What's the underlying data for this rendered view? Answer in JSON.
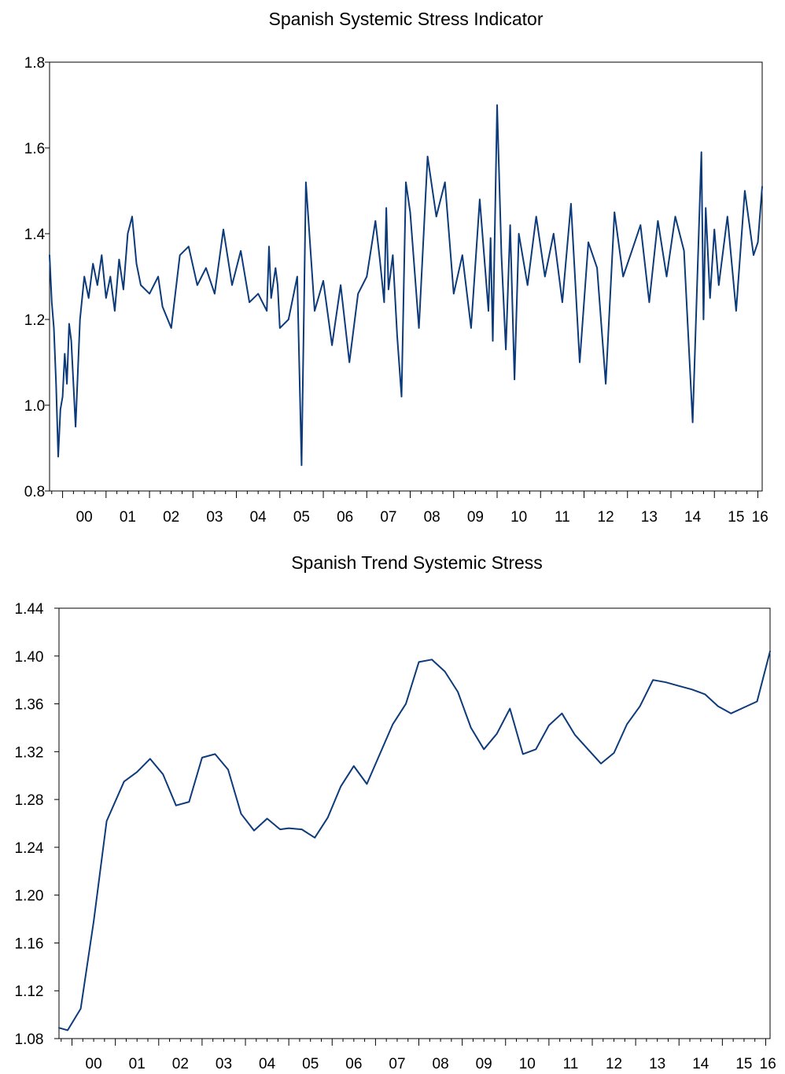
{
  "chart_data": [
    {
      "type": "line",
      "title": "Spanish Systemic Stress Indicator",
      "xlabel": "",
      "ylabel": "",
      "x_tick_labels": [
        "00",
        "01",
        "02",
        "03",
        "04",
        "05",
        "06",
        "07",
        "08",
        "09",
        "10",
        "11",
        "12",
        "13",
        "14",
        "15",
        "16"
      ],
      "y_tick_labels": [
        "0.8",
        "1.0",
        "1.2",
        "1.4",
        "1.6",
        "1.8"
      ],
      "ylim": [
        0.8,
        1.8
      ],
      "xlim": [
        1999.7,
        2016.1
      ],
      "grid": false,
      "legend": "none",
      "line_color": "#0d3b7a",
      "series": [
        {
          "x": [
            1999.7,
            1999.75,
            1999.8,
            1999.85,
            1999.9,
            1999.95,
            2000.0,
            2000.05,
            2000.1,
            2000.15,
            2000.2,
            2000.3,
            2000.4,
            2000.5,
            2000.6,
            2000.7,
            2000.8,
            2000.9,
            2001.0,
            2001.1,
            2001.2,
            2001.3,
            2001.4,
            2001.5,
            2001.6,
            2001.7,
            2001.8,
            2002.0,
            2002.2,
            2002.3,
            2002.5,
            2002.7,
            2002.9,
            2003.1,
            2003.3,
            2003.5,
            2003.7,
            2003.9,
            2004.1,
            2004.3,
            2004.5,
            2004.7,
            2004.75,
            2004.8,
            2004.9,
            2004.95,
            2005.0,
            2005.2,
            2005.4,
            2005.5,
            2005.6,
            2005.8,
            2006.0,
            2006.2,
            2006.4,
            2006.6,
            2006.8,
            2007.0,
            2007.2,
            2007.3,
            2007.4,
            2007.45,
            2007.5,
            2007.6,
            2007.7,
            2007.8,
            2007.9,
            2008.0,
            2008.2,
            2008.4,
            2008.6,
            2008.8,
            2009.0,
            2009.2,
            2009.4,
            2009.6,
            2009.8,
            2009.85,
            2009.9,
            2010.0,
            2010.1,
            2010.2,
            2010.3,
            2010.4,
            2010.5,
            2010.7,
            2010.9,
            2011.1,
            2011.3,
            2011.5,
            2011.7,
            2011.9,
            2012.1,
            2012.3,
            2012.5,
            2012.7,
            2012.9,
            2013.1,
            2013.3,
            2013.5,
            2013.7,
            2013.9,
            2014.1,
            2014.3,
            2014.5,
            2014.7,
            2014.75,
            2014.8,
            2014.9,
            2015.0,
            2015.1,
            2015.3,
            2015.5,
            2015.7,
            2015.9,
            2016.0,
            2016.1
          ],
          "values": [
            1.35,
            1.24,
            1.18,
            1.05,
            0.88,
            0.99,
            1.02,
            1.12,
            1.05,
            1.19,
            1.15,
            0.95,
            1.2,
            1.3,
            1.25,
            1.33,
            1.28,
            1.35,
            1.25,
            1.3,
            1.22,
            1.34,
            1.27,
            1.4,
            1.44,
            1.33,
            1.28,
            1.26,
            1.3,
            1.23,
            1.18,
            1.35,
            1.37,
            1.28,
            1.32,
            1.26,
            1.41,
            1.28,
            1.36,
            1.24,
            1.26,
            1.22,
            1.37,
            1.25,
            1.32,
            1.28,
            1.18,
            1.2,
            1.3,
            0.86,
            1.52,
            1.22,
            1.29,
            1.14,
            1.28,
            1.1,
            1.26,
            1.3,
            1.43,
            1.34,
            1.24,
            1.46,
            1.27,
            1.35,
            1.16,
            1.02,
            1.52,
            1.45,
            1.18,
            1.58,
            1.44,
            1.52,
            1.26,
            1.35,
            1.18,
            1.48,
            1.22,
            1.39,
            1.15,
            1.7,
            1.35,
            1.13,
            1.42,
            1.06,
            1.4,
            1.28,
            1.44,
            1.3,
            1.4,
            1.24,
            1.47,
            1.1,
            1.38,
            1.32,
            1.05,
            1.45,
            1.3,
            1.36,
            1.42,
            1.24,
            1.43,
            1.3,
            1.44,
            1.36,
            0.96,
            1.59,
            1.2,
            1.46,
            1.25,
            1.41,
            1.28,
            1.44,
            1.22,
            1.5,
            1.35,
            1.38,
            1.51
          ],
          "note": ""
        }
      ]
    },
    {
      "type": "line",
      "title": "Spanish Trend Systemic Stress",
      "xlabel": "",
      "ylabel": "",
      "x_tick_labels": [
        "00",
        "01",
        "02",
        "03",
        "04",
        "05",
        "06",
        "07",
        "08",
        "09",
        "10",
        "11",
        "12",
        "13",
        "14",
        "15",
        "16"
      ],
      "y_tick_labels": [
        "1.08",
        "1.12",
        "1.16",
        "1.20",
        "1.24",
        "1.28",
        "1.32",
        "1.36",
        "1.40",
        "1.44"
      ],
      "ylim": [
        1.08,
        1.44
      ],
      "xlim": [
        1999.7,
        2016.1
      ],
      "grid": false,
      "legend": "none",
      "line_color": "#0d3b7a",
      "series": [
        {
          "x": [
            1999.7,
            1999.9,
            2000.2,
            2000.5,
            2000.8,
            2001.2,
            2001.5,
            2001.8,
            2002.1,
            2002.4,
            2002.7,
            2003.0,
            2003.3,
            2003.6,
            2003.9,
            2004.2,
            2004.5,
            2004.8,
            2005.0,
            2005.3,
            2005.6,
            2005.9,
            2006.2,
            2006.5,
            2006.8,
            2007.1,
            2007.4,
            2007.7,
            2008.0,
            2008.3,
            2008.6,
            2008.9,
            2009.2,
            2009.5,
            2009.8,
            2010.1,
            2010.4,
            2010.7,
            2011.0,
            2011.3,
            2011.6,
            2011.9,
            2012.2,
            2012.5,
            2012.8,
            2013.1,
            2013.4,
            2013.7,
            2014.0,
            2014.3,
            2014.6,
            2014.9,
            2015.2,
            2015.5,
            2015.8,
            2016.1
          ],
          "values": [
            1.089,
            1.087,
            1.105,
            1.178,
            1.262,
            1.295,
            1.303,
            1.314,
            1.301,
            1.275,
            1.278,
            1.315,
            1.318,
            1.305,
            1.268,
            1.254,
            1.264,
            1.255,
            1.256,
            1.255,
            1.248,
            1.265,
            1.291,
            1.308,
            1.293,
            1.318,
            1.343,
            1.36,
            1.395,
            1.397,
            1.387,
            1.37,
            1.34,
            1.322,
            1.335,
            1.356,
            1.318,
            1.322,
            1.342,
            1.352,
            1.334,
            1.322,
            1.31,
            1.319,
            1.343,
            1.358,
            1.38,
            1.378,
            1.375,
            1.372,
            1.368,
            1.358,
            1.352,
            1.357,
            1.362,
            1.404
          ],
          "note": ""
        }
      ]
    }
  ]
}
